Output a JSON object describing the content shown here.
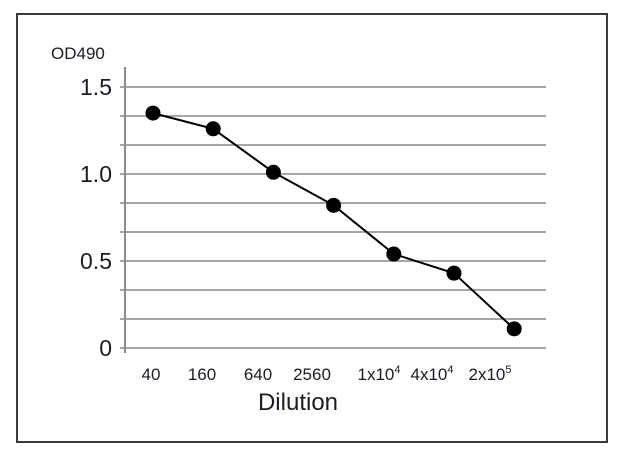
{
  "chart_data": {
    "type": "line",
    "title": "",
    "xlabel": "Dilution",
    "ylabel": "OD490",
    "categories": [
      "40",
      "160",
      "640",
      "2560",
      "1x10^4",
      "4x10^4",
      "2x10^5"
    ],
    "x_tick_labels": [
      {
        "base": "40",
        "sup": ""
      },
      {
        "base": "160",
        "sup": ""
      },
      {
        "base": "640",
        "sup": ""
      },
      {
        "base": "2560",
        "sup": ""
      },
      {
        "base": "1x10",
        "sup": "4"
      },
      {
        "base": "4x10",
        "sup": "4"
      },
      {
        "base": "2x10",
        "sup": "5"
      }
    ],
    "series": [
      {
        "name": "OD490",
        "values": [
          1.35,
          1.26,
          1.01,
          0.82,
          0.54,
          0.43,
          0.11
        ],
        "color": "#000000",
        "marker": "circle"
      }
    ],
    "ylim": [
      0,
      1.5
    ],
    "y_ticks": [
      {
        "value": 0,
        "label": "0"
      },
      {
        "value": 0.5,
        "label": "0.5"
      },
      {
        "value": 1.0,
        "label": "1.0"
      },
      {
        "value": 1.5,
        "label": "1.5"
      }
    ],
    "y_minor_gridlines": [
      0,
      0.1667,
      0.3333,
      0.5,
      0.6667,
      0.8333,
      1.0,
      1.1667,
      1.3333,
      1.5
    ],
    "grid": true,
    "legend": "none"
  },
  "colors": {
    "gridline": "#a6a6a6",
    "axis": "#8c8c8c",
    "series_line": "#000000",
    "marker": "#000000",
    "text": "#1c1c24",
    "frame": "#3a3a3a"
  }
}
